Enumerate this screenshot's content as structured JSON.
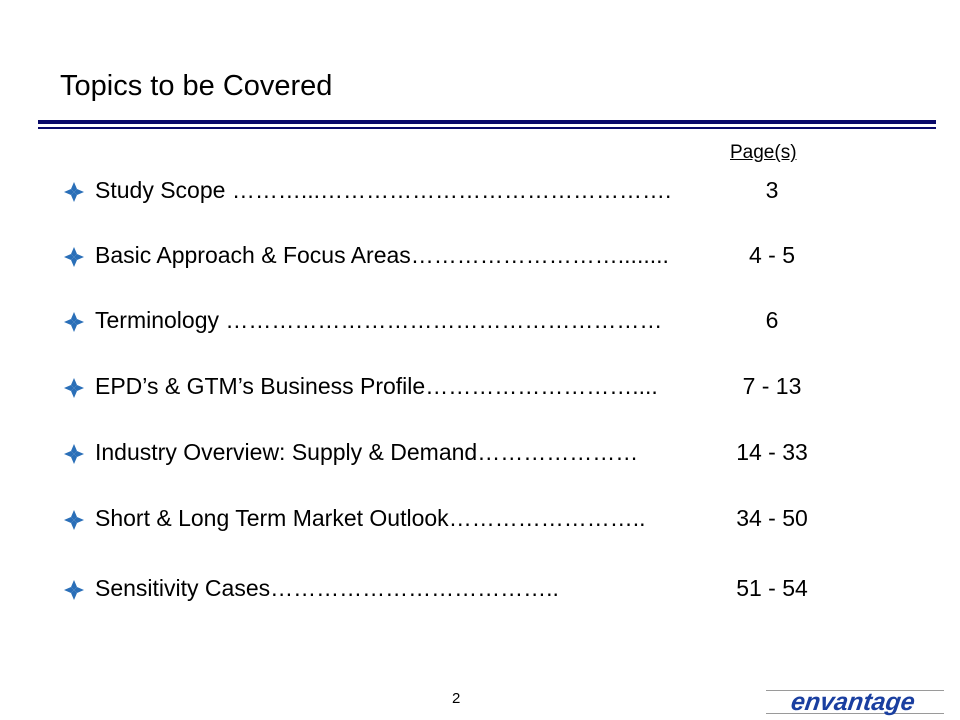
{
  "header": {
    "title": "Topics to be Covered"
  },
  "toc": {
    "pages_label": "Page(s)",
    "items": [
      {
        "label": "Study Scope ",
        "dots": "………...……………………………………….",
        "pages": "3"
      },
      {
        "label": "Basic Approach & Focus Areas",
        "dots": "………………………........",
        "pages": "4 - 5"
      },
      {
        "label": "Terminology ",
        "dots": "…………………………………………………",
        "pages": "6"
      },
      {
        "label": "EPD’s & GTM’s Business Profile",
        "dots": "………………………....",
        "pages": "7 - 13"
      },
      {
        "label": "Industry Overview: Supply & Demand",
        "dots": "…………………",
        "pages": "14 - 33"
      },
      {
        "label": "Short & Long Term Market Outlook",
        "dots": "……………………..",
        "pages": "34 - 50"
      },
      {
        "label": "Sensitivity Cases",
        "dots": "………………………………..",
        "pages": "51 - 54"
      }
    ]
  },
  "footer": {
    "page_number": "2",
    "logo_text": "envantage"
  },
  "colors": {
    "rule": "#0a0a6a",
    "bullet": "#2a6fb8",
    "logo": "#1a3fa0"
  },
  "icons": {
    "bullet": "diamond-bullet-icon"
  }
}
